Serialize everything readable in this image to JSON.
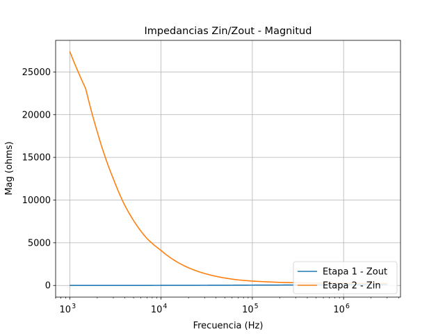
{
  "chart_data": {
    "type": "line",
    "title": "Impedancias Zin/Zout - Magnitud",
    "xlabel": "Frecuencia (Hz)",
    "ylabel": "Mag (ohms)",
    "x_scale": "log",
    "xlim": [
      700,
      4200000
    ],
    "ylim": [
      -1366,
      28700
    ],
    "grid": true,
    "legend_position": "lower-right",
    "x_ticks": [
      {
        "value": 1000,
        "base": "10",
        "exp": "3"
      },
      {
        "value": 10000,
        "base": "10",
        "exp": "4"
      },
      {
        "value": 100000,
        "base": "10",
        "exp": "5"
      },
      {
        "value": 1000000,
        "base": "10",
        "exp": "6"
      }
    ],
    "y_ticks": [
      {
        "value": 0,
        "label": "0"
      },
      {
        "value": 5000,
        "label": "5000"
      },
      {
        "value": 10000,
        "label": "10000"
      },
      {
        "value": 15000,
        "label": "15000"
      },
      {
        "value": 20000,
        "label": "20000"
      },
      {
        "value": 25000,
        "label": "25000"
      }
    ],
    "series": [
      {
        "name": "Etapa 1 - Zout",
        "color": "#1f77b4",
        "x": [
          1000,
          10000,
          100000,
          1000000,
          3000000
        ],
        "y": [
          0,
          10,
          40,
          80,
          100
        ]
      },
      {
        "name": "Etapa 2 - Zin",
        "color": "#ff7f0e",
        "x": [
          1000,
          1500,
          2000,
          3000,
          4000,
          5000,
          7000,
          10000,
          15000,
          20000,
          30000,
          50000,
          70000,
          100000,
          200000,
          500000,
          1000000,
          3000000
        ],
        "y": [
          27400,
          23000,
          18000,
          12500,
          9400,
          7600,
          5500,
          4100,
          2750,
          2070,
          1400,
          870,
          650,
          510,
          360,
          280,
          250,
          230
        ]
      }
    ]
  }
}
